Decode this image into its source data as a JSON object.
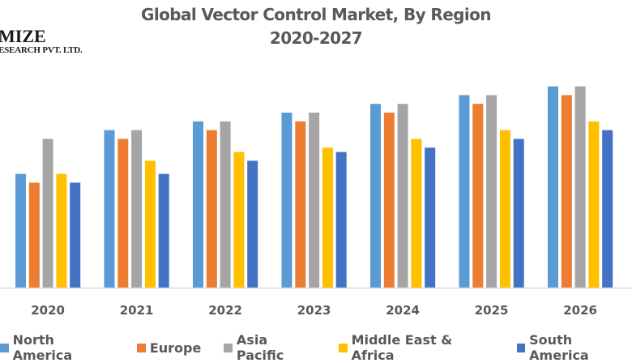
{
  "logo": {
    "line1": "MIZE",
    "line2": "ESEARCH PVT. LTD."
  },
  "chart_data": {
    "type": "bar",
    "title": "Global Vector Control Market, By Region",
    "subtitle": "2020-2027",
    "xlabel": "",
    "ylabel": "",
    "y_axis_shown": false,
    "grid": false,
    "legend_position": "bottom",
    "value_note": "Relative bar heights (no y-axis scale shown)",
    "ylim": [
      0,
      24
    ],
    "categories": [
      "2020",
      "2021",
      "2022",
      "2023",
      "2024",
      "2025",
      "2026"
    ],
    "series": [
      {
        "name": "North America",
        "color": "#5B9BD5",
        "values": [
          13,
          18,
          19,
          20,
          21,
          22,
          23
        ]
      },
      {
        "name": "Europe",
        "color": "#ED7D31",
        "values": [
          12,
          17,
          18,
          19,
          20,
          21,
          22
        ]
      },
      {
        "name": "Asia Pacific",
        "color": "#A5A5A5",
        "values": [
          17,
          18,
          19,
          20,
          21,
          22,
          23
        ]
      },
      {
        "name": "Middle East & Africa",
        "color": "#FFC000",
        "values": [
          13,
          14.5,
          15.5,
          16,
          17,
          18,
          19
        ]
      },
      {
        "name": "South America",
        "color": "#4472C4",
        "values": [
          12,
          13,
          14.5,
          15.5,
          16,
          17,
          18
        ]
      }
    ]
  }
}
